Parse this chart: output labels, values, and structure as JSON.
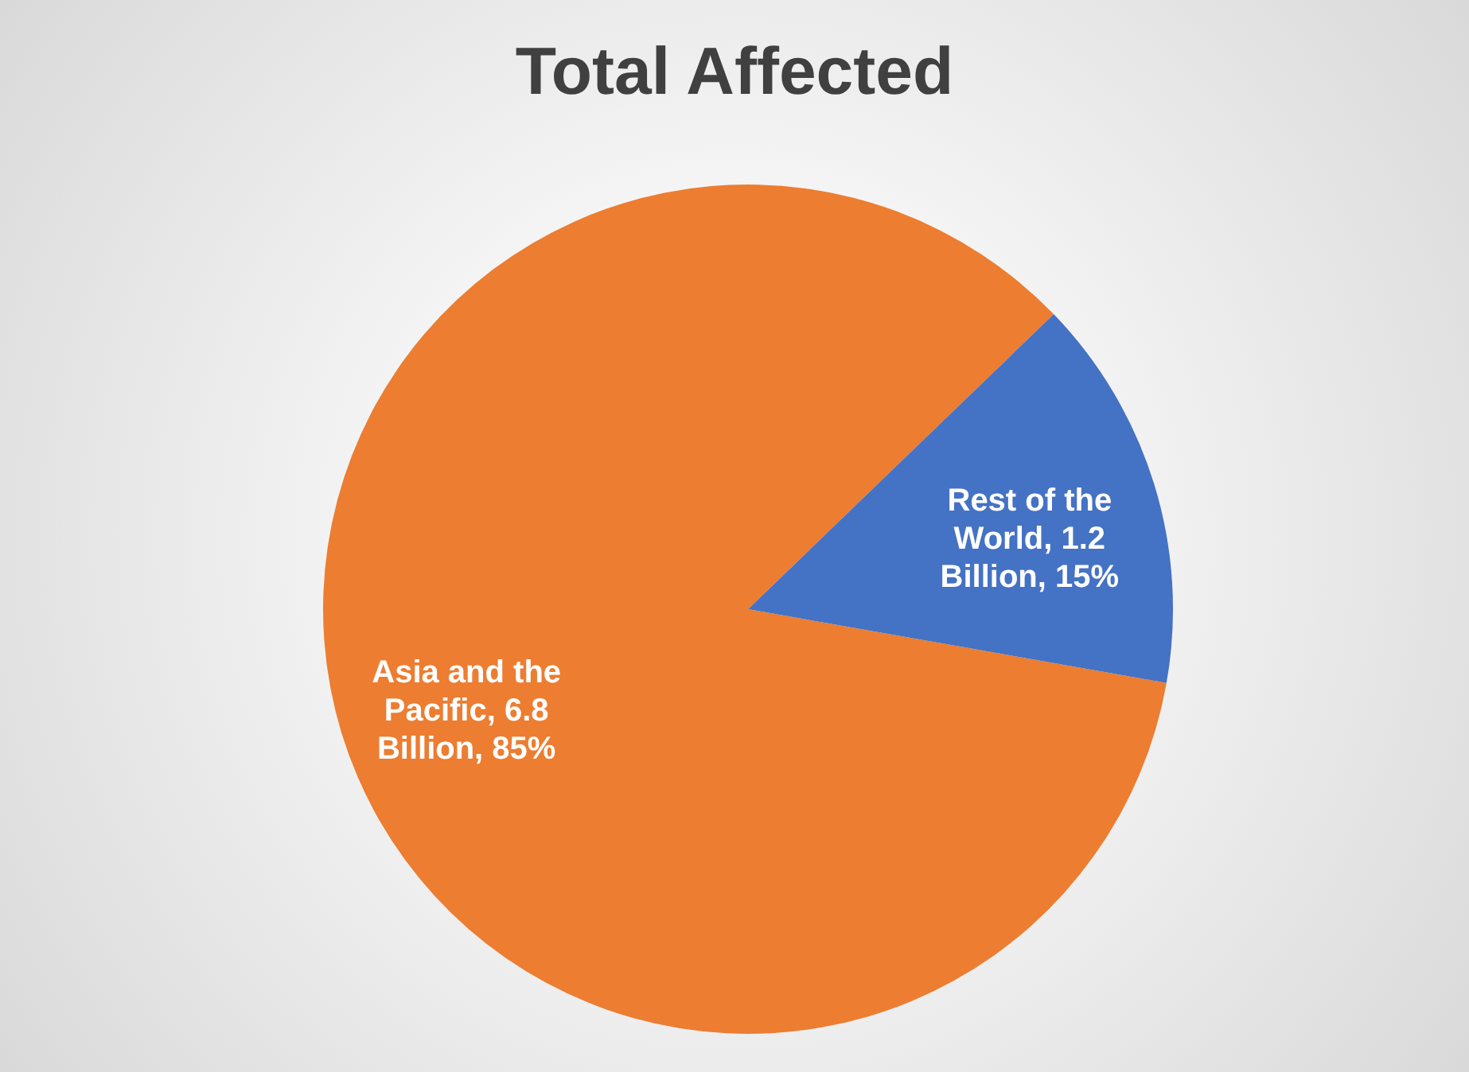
{
  "chart_data": {
    "type": "pie",
    "title": "Total Affected",
    "categories": [
      "Asia and the Pacific",
      "Rest of the World"
    ],
    "values": [
      6.8,
      1.2
    ],
    "colors": [
      "#ed7d31",
      "#4472c4"
    ],
    "value_labels": [
      ", 6.8 Billion, 85%",
      ", 1.2 Billion, 15%"
    ]
  }
}
